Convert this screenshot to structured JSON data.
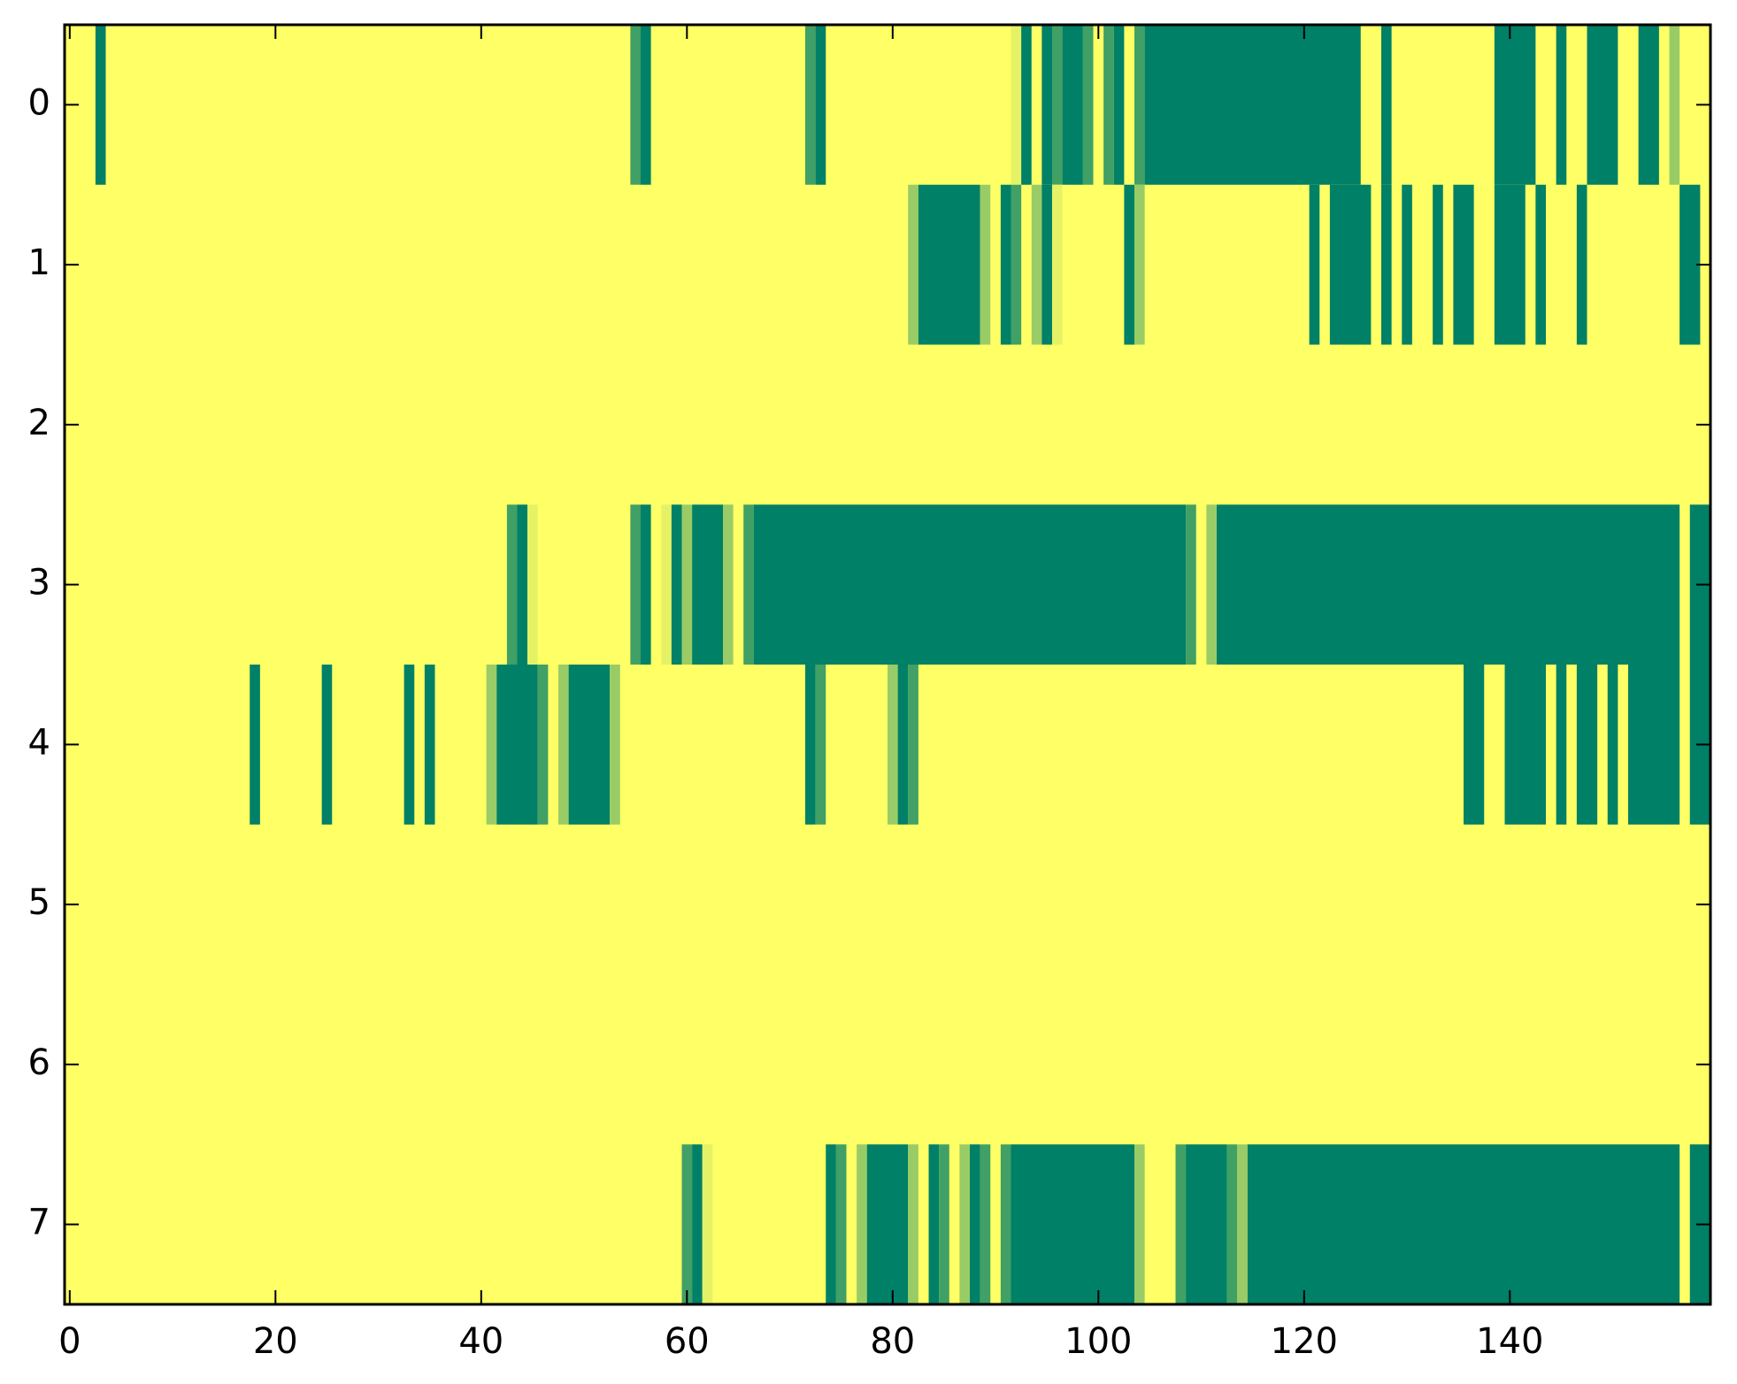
{
  "chart_data": {
    "type": "heatmap",
    "title": "",
    "xlabel": "",
    "ylabel": "",
    "xlim": [
      -0.5,
      159.5
    ],
    "ylim": [
      7.5,
      -0.5
    ],
    "x_ticks": [
      0,
      20,
      40,
      60,
      80,
      100,
      120,
      140
    ],
    "y_ticks": [
      0,
      1,
      2,
      3,
      4,
      5,
      6,
      7
    ],
    "grid": false,
    "legend": "none",
    "colormap": "summer_r",
    "value_range": [
      0,
      1
    ],
    "colors": {
      "background": "#ffff66",
      "high": "#008066",
      "mid_light": "#99cc66",
      "mid": "#40a066",
      "pale": "#e6f266"
    },
    "rows": [
      {
        "row": 0,
        "segments": [
          {
            "x0": 2.5,
            "x1": 3.5,
            "value": 1
          },
          {
            "x0": 54.5,
            "x1": 55.5,
            "value": 0.7
          },
          {
            "x0": 55.5,
            "x1": 56.5,
            "value": 1
          },
          {
            "x0": 71.5,
            "x1": 72.5,
            "value": 0.8
          },
          {
            "x0": 72.5,
            "x1": 73.5,
            "value": 1
          },
          {
            "x0": 91.5,
            "x1": 92.5,
            "value": 0.4
          },
          {
            "x0": 92.5,
            "x1": 93.5,
            "value": 1
          },
          {
            "x0": 94.5,
            "x1": 95.5,
            "value": 1
          },
          {
            "x0": 95.5,
            "x1": 96.5,
            "value": 0.8
          },
          {
            "x0": 96.5,
            "x1": 98.5,
            "value": 1
          },
          {
            "x0": 98.5,
            "x1": 99.5,
            "value": 0.8
          },
          {
            "x0": 100.5,
            "x1": 101.5,
            "value": 0.8
          },
          {
            "x0": 101.5,
            "x1": 102.5,
            "value": 1
          },
          {
            "x0": 103.5,
            "x1": 104.5,
            "value": 0.8
          },
          {
            "x0": 104.5,
            "x1": 125.5,
            "value": 1
          },
          {
            "x0": 127.5,
            "x1": 128.5,
            "value": 1
          },
          {
            "x0": 138.5,
            "x1": 142.5,
            "value": 1
          },
          {
            "x0": 144.5,
            "x1": 145.5,
            "value": 1
          },
          {
            "x0": 147.5,
            "x1": 150.5,
            "value": 1
          },
          {
            "x0": 152.5,
            "x1": 154.5,
            "value": 1
          },
          {
            "x0": 155.5,
            "x1": 156.5,
            "value": 0.6
          }
        ]
      },
      {
        "row": 1,
        "segments": [
          {
            "x0": 81.5,
            "x1": 82.5,
            "value": 0.5
          },
          {
            "x0": 82.5,
            "x1": 88.5,
            "value": 1
          },
          {
            "x0": 88.5,
            "x1": 89.5,
            "value": 0.6
          },
          {
            "x0": 90.5,
            "x1": 91.5,
            "value": 1
          },
          {
            "x0": 91.5,
            "x1": 92.5,
            "value": 0.8
          },
          {
            "x0": 93.5,
            "x1": 94.5,
            "value": 0.6
          },
          {
            "x0": 94.5,
            "x1": 95.5,
            "value": 1
          },
          {
            "x0": 95.5,
            "x1": 96.5,
            "value": 0.3
          },
          {
            "x0": 102.5,
            "x1": 103.5,
            "value": 1
          },
          {
            "x0": 103.5,
            "x1": 104.5,
            "value": 0.6
          },
          {
            "x0": 120.5,
            "x1": 121.5,
            "value": 1
          },
          {
            "x0": 122.5,
            "x1": 126.5,
            "value": 1
          },
          {
            "x0": 127.5,
            "x1": 128.5,
            "value": 1
          },
          {
            "x0": 129.5,
            "x1": 130.5,
            "value": 1
          },
          {
            "x0": 132.5,
            "x1": 133.5,
            "value": 1
          },
          {
            "x0": 134.5,
            "x1": 136.5,
            "value": 1
          },
          {
            "x0": 138.5,
            "x1": 141.5,
            "value": 1
          },
          {
            "x0": 142.5,
            "x1": 143.5,
            "value": 1
          },
          {
            "x0": 146.5,
            "x1": 147.5,
            "value": 1
          },
          {
            "x0": 156.5,
            "x1": 158.5,
            "value": 1
          }
        ]
      },
      {
        "row": 2,
        "segments": []
      },
      {
        "row": 3,
        "segments": [
          {
            "x0": 42.5,
            "x1": 43.5,
            "value": 0.8
          },
          {
            "x0": 43.5,
            "x1": 44.5,
            "value": 1
          },
          {
            "x0": 44.5,
            "x1": 45.5,
            "value": 0.3
          },
          {
            "x0": 54.5,
            "x1": 55.5,
            "value": 0.8
          },
          {
            "x0": 55.5,
            "x1": 56.5,
            "value": 1
          },
          {
            "x0": 57.5,
            "x1": 58.5,
            "value": 0.4
          },
          {
            "x0": 58.5,
            "x1": 59.5,
            "value": 1
          },
          {
            "x0": 59.5,
            "x1": 60.5,
            "value": 0.6
          },
          {
            "x0": 60.5,
            "x1": 63.5,
            "value": 1
          },
          {
            "x0": 63.5,
            "x1": 64.5,
            "value": 0.6
          },
          {
            "x0": 65.5,
            "x1": 66.5,
            "value": 0.8
          },
          {
            "x0": 66.5,
            "x1": 108.5,
            "value": 1
          },
          {
            "x0": 108.5,
            "x1": 109.5,
            "value": 0.8
          },
          {
            "x0": 110.5,
            "x1": 111.5,
            "value": 0.6
          },
          {
            "x0": 111.5,
            "x1": 156.5,
            "value": 1
          },
          {
            "x0": 157.5,
            "x1": 159.5,
            "value": 1
          }
        ]
      },
      {
        "row": 4,
        "segments": [
          {
            "x0": 17.5,
            "x1": 18.5,
            "value": 1
          },
          {
            "x0": 24.5,
            "x1": 25.5,
            "value": 1
          },
          {
            "x0": 32.5,
            "x1": 33.5,
            "value": 1
          },
          {
            "x0": 34.5,
            "x1": 35.5,
            "value": 1
          },
          {
            "x0": 40.5,
            "x1": 41.5,
            "value": 0.6
          },
          {
            "x0": 41.5,
            "x1": 45.5,
            "value": 1
          },
          {
            "x0": 45.5,
            "x1": 46.5,
            "value": 0.8
          },
          {
            "x0": 47.5,
            "x1": 48.5,
            "value": 0.6
          },
          {
            "x0": 48.5,
            "x1": 52.5,
            "value": 1
          },
          {
            "x0": 52.5,
            "x1": 53.5,
            "value": 0.6
          },
          {
            "x0": 71.5,
            "x1": 72.5,
            "value": 1
          },
          {
            "x0": 72.5,
            "x1": 73.5,
            "value": 0.8
          },
          {
            "x0": 79.5,
            "x1": 80.5,
            "value": 0.6
          },
          {
            "x0": 80.5,
            "x1": 81.5,
            "value": 1
          },
          {
            "x0": 81.5,
            "x1": 82.5,
            "value": 0.8
          },
          {
            "x0": 135.5,
            "x1": 137.5,
            "value": 1
          },
          {
            "x0": 139.5,
            "x1": 143.5,
            "value": 1
          },
          {
            "x0": 144.5,
            "x1": 145.5,
            "value": 1
          },
          {
            "x0": 146.5,
            "x1": 148.5,
            "value": 1
          },
          {
            "x0": 149.5,
            "x1": 150.5,
            "value": 1
          },
          {
            "x0": 151.5,
            "x1": 156.5,
            "value": 1
          },
          {
            "x0": 157.5,
            "x1": 159.5,
            "value": 1
          }
        ]
      },
      {
        "row": 5,
        "segments": []
      },
      {
        "row": 6,
        "segments": []
      },
      {
        "row": 7,
        "segments": [
          {
            "x0": 59.5,
            "x1": 60.5,
            "value": 0.8
          },
          {
            "x0": 60.5,
            "x1": 61.5,
            "value": 1
          },
          {
            "x0": 61.5,
            "x1": 62.5,
            "value": 0.3
          },
          {
            "x0": 73.5,
            "x1": 74.5,
            "value": 1
          },
          {
            "x0": 74.5,
            "x1": 75.5,
            "value": 0.8
          },
          {
            "x0": 76.5,
            "x1": 77.5,
            "value": 0.6
          },
          {
            "x0": 77.5,
            "x1": 81.5,
            "value": 1
          },
          {
            "x0": 81.5,
            "x1": 82.5,
            "value": 0.6
          },
          {
            "x0": 83.5,
            "x1": 84.5,
            "value": 1
          },
          {
            "x0": 84.5,
            "x1": 85.5,
            "value": 0.8
          },
          {
            "x0": 86.5,
            "x1": 87.5,
            "value": 0.6
          },
          {
            "x0": 87.5,
            "x1": 88.5,
            "value": 1
          },
          {
            "x0": 88.5,
            "x1": 89.5,
            "value": 0.8
          },
          {
            "x0": 90.5,
            "x1": 91.5,
            "value": 0.8
          },
          {
            "x0": 91.5,
            "x1": 103.5,
            "value": 1
          },
          {
            "x0": 103.5,
            "x1": 104.5,
            "value": 0.6
          },
          {
            "x0": 107.5,
            "x1": 108.5,
            "value": 0.8
          },
          {
            "x0": 108.5,
            "x1": 112.5,
            "value": 1
          },
          {
            "x0": 112.5,
            "x1": 113.5,
            "value": 0.8
          },
          {
            "x0": 113.5,
            "x1": 114.5,
            "value": 0.6
          },
          {
            "x0": 114.5,
            "x1": 156.5,
            "value": 1
          },
          {
            "x0": 157.5,
            "x1": 159.5,
            "value": 1
          }
        ]
      }
    ]
  }
}
